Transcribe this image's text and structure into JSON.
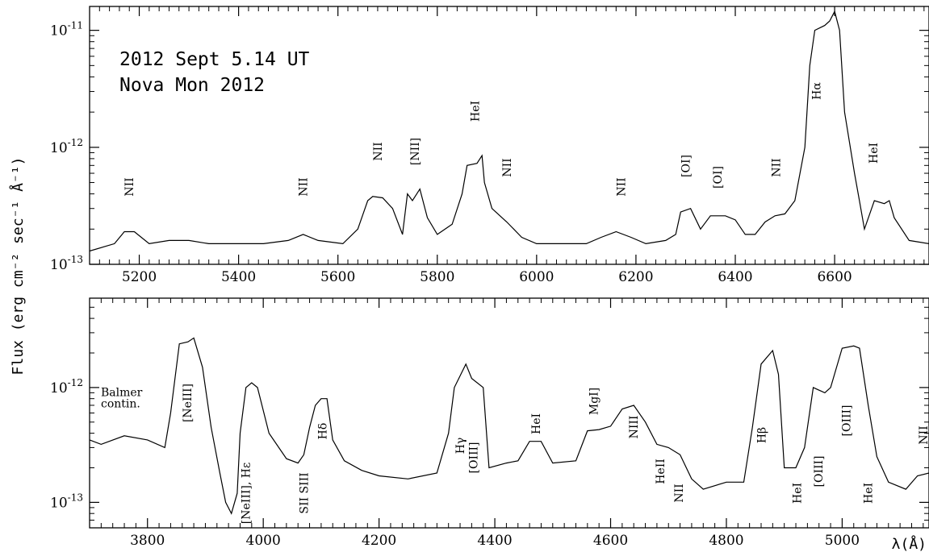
{
  "chart_data": [
    {
      "type": "line",
      "yscale": "log",
      "annotations": [
        "2012 Sept 5.14 UT",
        "Nova Mon 2012"
      ],
      "xlim": [
        5100,
        6790
      ],
      "ylim": [
        1e-13,
        1.6e-11
      ],
      "x_ticks": [
        5200,
        5400,
        5600,
        5800,
        6000,
        6200,
        6400,
        6600
      ],
      "x_tick_labels": [
        "5200",
        "5400",
        "5600",
        "5800",
        "6000",
        "6200",
        "6400",
        "6600"
      ],
      "y_ticks": [
        1e-13,
        1e-12,
        1e-11
      ],
      "y_tick_labels": [
        [
          "10",
          "-13"
        ],
        [
          "10",
          "-12"
        ],
        [
          "10",
          "-11"
        ]
      ],
      "series": [
        {
          "x": [
            5100,
            5150,
            5170,
            5190,
            5220,
            5260,
            5300,
            5340,
            5400,
            5450,
            5500,
            5530,
            5560,
            5610,
            5640,
            5660,
            5670,
            5690,
            5710,
            5730,
            5740,
            5750,
            5765,
            5780,
            5800,
            5830,
            5850,
            5860,
            5880,
            5890,
            5895,
            5910,
            5940,
            5970,
            6000,
            6050,
            6100,
            6130,
            6160,
            6190,
            6220,
            6260,
            6280,
            6290,
            6310,
            6330,
            6350,
            6380,
            6400,
            6420,
            6440,
            6460,
            6480,
            6500,
            6520,
            6540,
            6550,
            6560,
            6580,
            6590,
            6600,
            6610,
            6620,
            6640,
            6650,
            6660,
            6680,
            6700,
            6710,
            6720,
            6750,
            6790
          ],
          "y": [
            1.3e-13,
            1.5e-13,
            1.9e-13,
            1.9e-13,
            1.5e-13,
            1.6e-13,
            1.6e-13,
            1.5e-13,
            1.5e-13,
            1.5e-13,
            1.6e-13,
            1.8e-13,
            1.6e-13,
            1.5e-13,
            2e-13,
            3.5e-13,
            3.8e-13,
            3.7e-13,
            3e-13,
            1.8e-13,
            4e-13,
            3.5e-13,
            4.4e-13,
            2.5e-13,
            1.8e-13,
            2.2e-13,
            4e-13,
            7e-13,
            7.3e-13,
            8.5e-13,
            5e-13,
            3e-13,
            2.3e-13,
            1.7e-13,
            1.5e-13,
            1.5e-13,
            1.5e-13,
            1.7e-13,
            1.9e-13,
            1.7e-13,
            1.5e-13,
            1.6e-13,
            1.8e-13,
            2.8e-13,
            3e-13,
            2e-13,
            2.6e-13,
            2.6e-13,
            2.4e-13,
            1.8e-13,
            1.8e-13,
            2.3e-13,
            2.6e-13,
            2.7e-13,
            3.5e-13,
            1e-12,
            5e-12,
            1e-11,
            1.1e-11,
            1.2e-11,
            1.45e-11,
            1e-11,
            2e-12,
            6e-13,
            3.5e-13,
            2e-13,
            3.5e-13,
            3.3e-13,
            3.5e-13,
            2.5e-13,
            1.6e-13,
            1.5e-13
          ]
        }
      ],
      "line_labels": [
        {
          "text": "NII",
          "x": 5180
        },
        {
          "text": "NII",
          "x": 5530
        },
        {
          "text": "NII",
          "x": 5680
        },
        {
          "text": "[NII]",
          "x": 5755
        },
        {
          "text": "HeI",
          "x": 5876
        },
        {
          "text": "NII",
          "x": 5940
        },
        {
          "text": "NII",
          "x": 6170
        },
        {
          "text": "[OI]",
          "x": 6300
        },
        {
          "text": "[OI]",
          "x": 6364
        },
        {
          "text": "NII",
          "x": 6482
        },
        {
          "text": "Hα",
          "x": 6563
        },
        {
          "text": "HeI",
          "x": 6678
        }
      ]
    },
    {
      "type": "line",
      "yscale": "log",
      "xlim": [
        3700,
        5150
      ],
      "ylim": [
        6e-14,
        6e-12
      ],
      "x_ticks": [
        3800,
        4000,
        4200,
        4400,
        4600,
        4800,
        5000
      ],
      "x_tick_labels": [
        "3800",
        "4000",
        "4200",
        "4400",
        "4600",
        "4800",
        "5000"
      ],
      "y_ticks": [
        1e-13,
        1e-12
      ],
      "y_tick_labels": [
        [
          "10",
          "-13"
        ],
        [
          "10",
          "-12"
        ]
      ],
      "series": [
        {
          "x": [
            3700,
            3720,
            3760,
            3800,
            3830,
            3840,
            3855,
            3870,
            3880,
            3895,
            3910,
            3925,
            3935,
            3945,
            3955,
            3960,
            3970,
            3980,
            3990,
            4010,
            4040,
            4060,
            4070,
            4080,
            4090,
            4100,
            4110,
            4120,
            4140,
            4170,
            4200,
            4250,
            4300,
            4320,
            4330,
            4350,
            4360,
            4380,
            4390,
            4420,
            4440,
            4460,
            4480,
            4500,
            4540,
            4560,
            4580,
            4600,
            4620,
            4640,
            4660,
            4680,
            4700,
            4720,
            4740,
            4760,
            4800,
            4830,
            4845,
            4860,
            4880,
            4890,
            4900,
            4920,
            4935,
            4950,
            4970,
            4980,
            5000,
            5020,
            5030,
            5045,
            5060,
            5080,
            5110,
            5130,
            5150
          ],
          "y": [
            3.5e-13,
            3.2e-13,
            3.8e-13,
            3.5e-13,
            3e-13,
            6e-13,
            2.4e-12,
            2.5e-12,
            2.7e-12,
            1.5e-12,
            4.5e-13,
            1.8e-13,
            1e-13,
            8e-14,
            1.2e-13,
            4e-13,
            1e-12,
            1.1e-12,
            1e-12,
            4e-13,
            2.4e-13,
            2.2e-13,
            2.6e-13,
            4.5e-13,
            7e-13,
            8e-13,
            8e-13,
            3.5e-13,
            2.3e-13,
            1.9e-13,
            1.7e-13,
            1.6e-13,
            1.8e-13,
            4e-13,
            1e-12,
            1.6e-12,
            1.2e-12,
            1e-12,
            2e-13,
            2.2e-13,
            2.3e-13,
            3.4e-13,
            3.4e-13,
            2.2e-13,
            2.3e-13,
            4.2e-13,
            4.3e-13,
            4.6e-13,
            6.5e-13,
            7e-13,
            5e-13,
            3.2e-13,
            3e-13,
            2.6e-13,
            1.6e-13,
            1.3e-13,
            1.5e-13,
            1.5e-13,
            4.5e-13,
            1.6e-12,
            2.1e-12,
            1.3e-12,
            2e-13,
            2e-13,
            3e-13,
            1e-12,
            9e-13,
            1e-12,
            2.2e-12,
            2.3e-12,
            2.2e-12,
            7e-13,
            2.5e-13,
            1.5e-13,
            1.3e-13,
            1.7e-13,
            1.8e-13
          ]
        }
      ],
      "line_labels": [
        {
          "text": "Balmer",
          "x": 3767,
          "y": 8.4e-13
        },
        {
          "text": "contin.",
          "x": 3767,
          "y": 6.7e-13
        },
        {
          "text": "[NeIII]",
          "x": 3869
        },
        {
          "text": "[NeIII], Hε",
          "x": 3970
        },
        {
          "text": "SII SIII",
          "x": 4070
        },
        {
          "text": "Hδ",
          "x": 4102
        },
        {
          "text": "Hγ",
          "x": 4340
        },
        {
          "text": "[OIII]",
          "x": 4363
        },
        {
          "text": "HeI",
          "x": 4471
        },
        {
          "text": "MgI]",
          "x": 4571
        },
        {
          "text": "NIII",
          "x": 4640
        },
        {
          "text": "HeII",
          "x": 4686
        },
        {
          "text": "NII",
          "x": 4718
        },
        {
          "text": "Hβ",
          "x": 4861
        },
        {
          "text": "HeI",
          "x": 4922
        },
        {
          "text": "[OIII]",
          "x": 4959
        },
        {
          "text": "[OIII]",
          "x": 5007
        },
        {
          "text": "HeI",
          "x": 5045
        },
        {
          "text": "NII",
          "x": 5140
        }
      ]
    }
  ],
  "y_axis_label": "Flux (erg cm⁻² sec⁻¹ Å⁻¹)",
  "x_axis_label": "λ(Å)"
}
